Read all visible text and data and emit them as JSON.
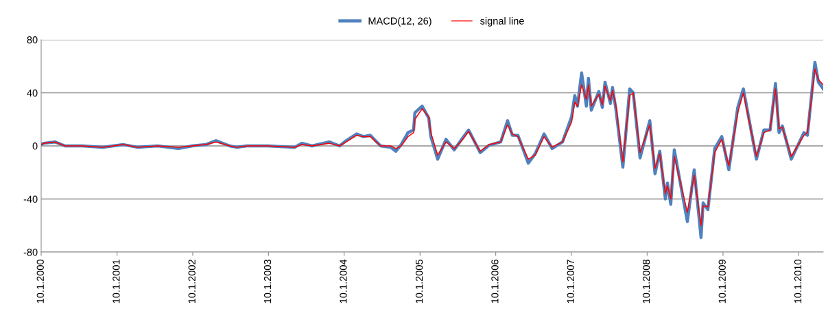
{
  "chart_data": {
    "type": "line",
    "x": [
      "2000-01-10",
      "2000-01-23",
      "2000-03-16",
      "2000-05-04",
      "2000-07-26",
      "2000-11-02",
      "2001-02-10",
      "2001-04-17",
      "2001-07-25",
      "2001-11-02",
      "2002-01-07",
      "2002-03-14",
      "2002-05-02",
      "2002-07-07",
      "2002-08-09",
      "2002-09-28",
      "2003-01-05",
      "2003-05-17",
      "2003-06-20",
      "2003-08-08",
      "2003-10-30",
      "2003-12-19",
      "2004-01-20",
      "2004-03-10",
      "2004-04-12",
      "2004-05-15",
      "2004-07-04",
      "2004-08-22",
      "2004-09-15",
      "2004-10-11",
      "2004-11-13",
      "2004-12-10",
      "2004-12-16",
      "2005-01-20",
      "2005-02-21",
      "2005-03-03",
      "2005-04-05",
      "2005-05-15",
      "2005-06-24",
      "2005-07-30",
      "2005-09-01",
      "2005-10-27",
      "2005-12-09",
      "2006-02-03",
      "2006-03-08",
      "2006-03-31",
      "2006-04-27",
      "2006-06-16",
      "2006-07-19",
      "2006-08-31",
      "2006-10-09",
      "2006-11-28",
      "2007-01-11",
      "2007-01-26",
      "2007-02-08",
      "2007-02-28",
      "2007-03-23",
      "2007-04-02",
      "2007-04-16",
      "2007-05-22",
      "2007-06-08",
      "2007-06-21",
      "2007-07-17",
      "2007-07-27",
      "2007-08-13",
      "2007-09-15",
      "2007-10-18",
      "2007-11-04",
      "2007-12-07",
      "2008-01-23",
      "2008-02-17",
      "2008-03-11",
      "2008-04-07",
      "2008-04-17",
      "2008-05-03",
      "2008-05-20",
      "2008-07-22",
      "2008-08-24",
      "2008-09-26",
      "2008-10-06",
      "2008-10-29",
      "2008-12-01",
      "2009-01-04",
      "2009-02-07",
      "2009-03-22",
      "2009-04-18",
      "2009-06-20",
      "2009-07-26",
      "2009-08-25",
      "2009-09-20",
      "2009-10-07",
      "2009-10-23",
      "2009-12-05",
      "2010-02-04",
      "2010-02-21",
      "2010-03-29",
      "2010-04-15",
      "2010-05-08"
    ],
    "series": [
      {
        "name": "MACD(12, 26)",
        "color": "#4f81bd",
        "values": [
          1,
          2,
          3,
          0,
          0,
          -1,
          1,
          -1,
          0,
          -2,
          0,
          1,
          4,
          0,
          -1,
          0,
          0,
          -1,
          2,
          0,
          3,
          0,
          4,
          9,
          7,
          8,
          0,
          -1,
          -4,
          1,
          10,
          12,
          25,
          30,
          21,
          7,
          -10,
          5,
          -3,
          5,
          12,
          -5,
          0.5,
          3,
          19,
          8,
          8,
          -13,
          -6,
          9,
          -2,
          3,
          22,
          38,
          30,
          55,
          30,
          51,
          27,
          41,
          29,
          48,
          32,
          44,
          27,
          -16,
          43,
          40,
          -9,
          19,
          -21,
          -4,
          -40,
          -28,
          -44,
          -3,
          -57,
          -18,
          -69,
          -43,
          -48,
          -2,
          7,
          -18,
          29,
          43,
          -10,
          12,
          12,
          47,
          10,
          15,
          -10,
          10,
          8,
          63,
          48,
          43
        ]
      },
      {
        "name": "signal line",
        "color": "#ff0000",
        "values": [
          1,
          2,
          3,
          0,
          0,
          -1,
          1,
          -1,
          0,
          -1,
          0,
          1,
          3,
          0,
          -1,
          0,
          0,
          -1,
          1,
          0,
          2,
          0,
          3,
          8,
          7,
          7,
          0,
          0,
          -2,
          0,
          7,
          10,
          20,
          28,
          22,
          10,
          -7,
          3,
          -2,
          4,
          11,
          -4,
          1,
          3,
          16,
          9,
          7,
          -10,
          -7,
          7,
          -1,
          3,
          18,
          33,
          30,
          46,
          35,
          46,
          30,
          39,
          31,
          45,
          34,
          42,
          30,
          -12,
          38,
          40,
          -5,
          16,
          -17,
          -6,
          -36,
          -30,
          -40,
          -8,
          -50,
          -22,
          -60,
          -45,
          -46,
          -5,
          5,
          -15,
          25,
          40,
          -8,
          10,
          12,
          43,
          13,
          14,
          -8,
          8,
          10,
          58,
          50,
          46
        ]
      }
    ],
    "ylim": [
      -80,
      80
    ],
    "yticks": [
      -80,
      -40,
      0,
      40,
      80
    ],
    "xlim": [
      "2000-01-10",
      "2010-05-08"
    ],
    "xticks": [
      {
        "value": "2000-01-10",
        "label": "10.1.2000"
      },
      {
        "value": "2001-01-10",
        "label": "10.1.2001"
      },
      {
        "value": "2002-01-10",
        "label": "10.1.2002"
      },
      {
        "value": "2003-01-10",
        "label": "10.1.2003"
      },
      {
        "value": "2004-01-10",
        "label": "10.1.2004"
      },
      {
        "value": "2005-01-10",
        "label": "10.1.2005"
      },
      {
        "value": "2006-01-10",
        "label": "10.1.2006"
      },
      {
        "value": "2007-01-10",
        "label": "10.1.2007"
      },
      {
        "value": "2008-01-10",
        "label": "10.1.2008"
      },
      {
        "value": "2009-01-10",
        "label": "10.1.2009"
      },
      {
        "value": "2010-01-10",
        "label": "10.1.2010"
      }
    ],
    "grid": "y",
    "legend": "top"
  }
}
